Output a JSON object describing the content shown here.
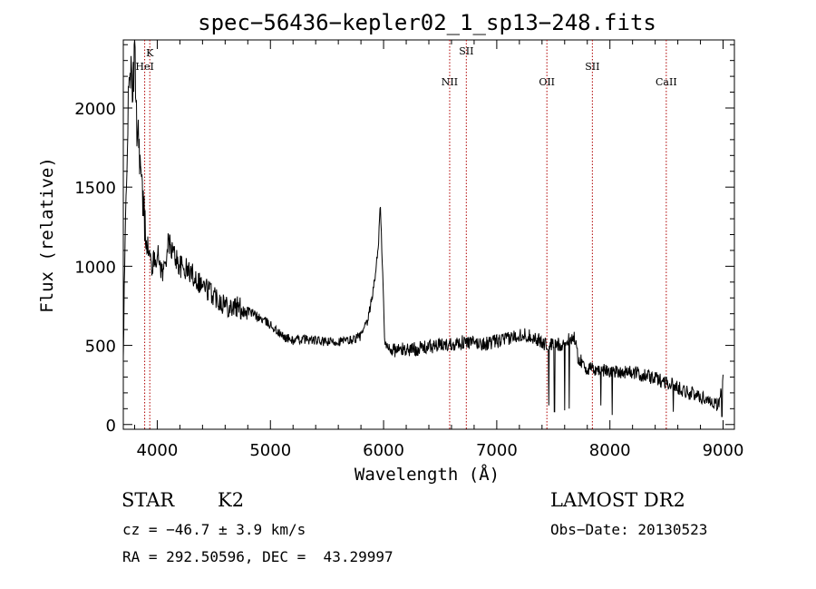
{
  "chart_data": {
    "type": "line",
    "title": "spec−56436−kepler02_1_sp13−248.fits",
    "xlabel": "Wavelength (Å)",
    "ylabel": "Flux (relative)",
    "xlim": [
      3700,
      9100
    ],
    "ylim": [
      -30,
      2430
    ],
    "x_ticks": [
      4000,
      5000,
      6000,
      7000,
      8000,
      9000
    ],
    "y_ticks": [
      0,
      500,
      1000,
      1500,
      2000
    ],
    "grid": false,
    "line_color": "#000000",
    "marker_color": "#b00000",
    "spectrum_anchor_points": [
      [
        3700,
        400
      ],
      [
        3730,
        1700
      ],
      [
        3760,
        2300
      ],
      [
        3780,
        2050
      ],
      [
        3800,
        2380
      ],
      [
        3820,
        1900
      ],
      [
        3840,
        1800
      ],
      [
        3860,
        1500
      ],
      [
        3900,
        1180
      ],
      [
        3950,
        1000
      ],
      [
        4000,
        1080
      ],
      [
        4050,
        950
      ],
      [
        4100,
        1150
      ],
      [
        4200,
        1000
      ],
      [
        4300,
        960
      ],
      [
        4400,
        880
      ],
      [
        4500,
        820
      ],
      [
        4600,
        760
      ],
      [
        4800,
        720
      ],
      [
        5000,
        630
      ],
      [
        5100,
        560
      ],
      [
        5200,
        530
      ],
      [
        5300,
        540
      ],
      [
        5500,
        520
      ],
      [
        5700,
        530
      ],
      [
        5800,
        560
      ],
      [
        5860,
        650
      ],
      [
        5920,
        900
      ],
      [
        5955,
        1150
      ],
      [
        5970,
        1390
      ],
      [
        5990,
        1000
      ],
      [
        6010,
        500
      ],
      [
        6100,
        470
      ],
      [
        6300,
        480
      ],
      [
        6500,
        500
      ],
      [
        6700,
        520
      ],
      [
        6900,
        510
      ],
      [
        7100,
        540
      ],
      [
        7200,
        570
      ],
      [
        7300,
        560
      ],
      [
        7450,
        500
      ],
      [
        7600,
        510
      ],
      [
        7680,
        560
      ],
      [
        7720,
        420
      ],
      [
        7800,
        350
      ],
      [
        8000,
        340
      ],
      [
        8200,
        330
      ],
      [
        8400,
        290
      ],
      [
        8500,
        270
      ],
      [
        8700,
        200
      ],
      [
        8900,
        150
      ],
      [
        8960,
        120
      ],
      [
        9000,
        300
      ]
    ],
    "dips": [
      [
        7460,
        120
      ],
      [
        7510,
        80
      ],
      [
        7600,
        90
      ],
      [
        7640,
        100
      ],
      [
        7920,
        120
      ],
      [
        8020,
        60
      ],
      [
        8560,
        80
      ],
      [
        8990,
        50
      ]
    ],
    "lines": [
      {
        "label": "K",
        "wavelength": 3934
      },
      {
        "label": "HeI",
        "wavelength": 3889
      },
      {
        "label": "NII",
        "wavelength": 6584
      },
      {
        "label": "SII",
        "wavelength": 6731
      },
      {
        "label": "OII",
        "wavelength": 7443
      },
      {
        "label": "SII",
        "wavelength": 7845
      },
      {
        "label": "CaII",
        "wavelength": 8498
      }
    ]
  },
  "footer": {
    "object_class": "STAR",
    "subclass": "K2",
    "survey": "LAMOST DR2",
    "cz": "cz = −46.7 ± 3.9 km/s",
    "obs_date": "Obs−Date: 20130523",
    "coords": "RA = 292.50596, DEC =  43.29997"
  }
}
